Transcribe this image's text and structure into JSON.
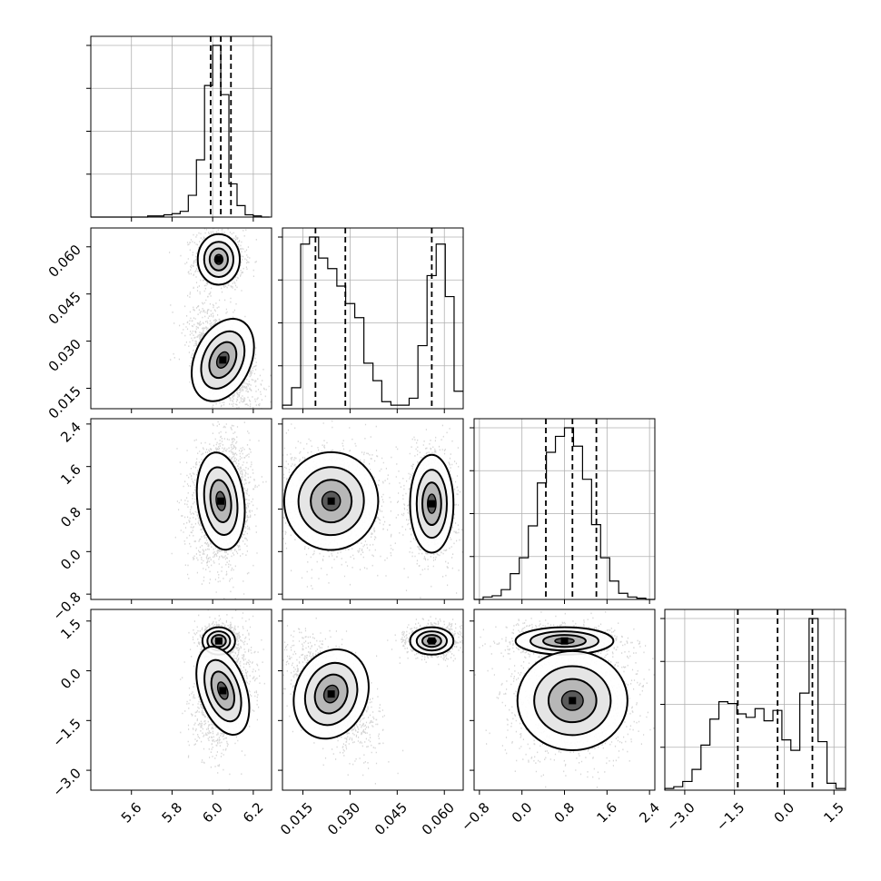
{
  "chart_data": {
    "type": "corner",
    "parameters": [
      {
        "index": 0,
        "range": [
          5.4,
          6.29
        ],
        "ticks": [
          "5.6",
          "5.8",
          "6.0",
          "6.2"
        ],
        "tick_values": [
          5.6,
          5.8,
          6.0,
          6.2
        ],
        "quantiles": [
          5.99,
          6.04,
          6.09
        ],
        "histogram": {
          "bins": [
            5.4,
            5.44,
            5.48,
            5.52,
            5.56,
            5.6,
            5.64,
            5.68,
            5.72,
            5.76,
            5.8,
            5.84,
            5.88,
            5.92,
            5.96,
            6.0,
            6.04,
            6.08,
            6.12,
            6.16,
            6.2,
            6.24,
            6.28
          ],
          "counts": [
            0,
            0,
            0,
            0,
            0,
            0,
            0,
            1,
            1,
            2,
            3,
            5,
            19,
            50,
            115,
            150,
            107,
            29,
            10,
            2,
            1,
            0
          ]
        }
      },
      {
        "index": 1,
        "range": [
          0.0085,
          0.066
        ],
        "ticks": [
          "0.015",
          "0.030",
          "0.045",
          "0.060"
        ],
        "tick_values": [
          0.015,
          0.03,
          0.045,
          0.06
        ],
        "quantiles": [
          0.019,
          0.0285,
          0.056
        ],
        "histogram": {
          "bins": [
            0.0085,
            0.0114,
            0.0143,
            0.0171,
            0.02,
            0.0229,
            0.0258,
            0.0286,
            0.0315,
            0.0344,
            0.0373,
            0.0401,
            0.043,
            0.0459,
            0.0488,
            0.0516,
            0.0545,
            0.0574,
            0.0603,
            0.0631,
            0.066
          ],
          "counts": [
            1,
            6,
            47,
            49,
            43,
            40,
            35,
            30,
            26,
            13,
            8,
            2,
            1,
            1,
            3,
            18,
            38,
            47,
            32,
            5
          ]
        }
      },
      {
        "index": 2,
        "range": [
          -0.9,
          2.5
        ],
        "ticks": [
          "-0.8",
          "0.0",
          "0.8",
          "1.6",
          "2.4"
        ],
        "tick_values": [
          -0.8,
          0.0,
          0.8,
          1.6,
          2.4
        ],
        "quantiles": [
          0.45,
          0.95,
          1.4
        ],
        "histogram": {
          "bins": [
            -0.9,
            -0.73,
            -0.56,
            -0.39,
            -0.22,
            -0.05,
            0.12,
            0.29,
            0.46,
            0.63,
            0.8,
            0.97,
            1.14,
            1.31,
            1.48,
            1.65,
            1.82,
            1.99,
            2.16,
            2.33,
            2.5
          ],
          "counts": [
            0,
            2,
            3,
            8,
            21,
            34,
            60,
            95,
            120,
            133,
            140,
            125,
            98,
            61,
            34,
            15,
            5,
            2,
            1,
            0
          ]
        }
      },
      {
        "index": 3,
        "range": [
          -3.6,
          1.85
        ],
        "ticks": [
          "-3.0",
          "-1.5",
          "0.0",
          "1.5"
        ],
        "tick_values": [
          -3.0,
          -1.5,
          0.0,
          1.5
        ],
        "quantiles": [
          -1.4,
          -0.2,
          0.85
        ],
        "histogram": {
          "bins": [
            -3.6,
            -3.33,
            -3.06,
            -2.78,
            -2.51,
            -2.24,
            -1.97,
            -1.7,
            -1.43,
            -1.15,
            -0.88,
            -0.61,
            -0.34,
            -0.07,
            0.2,
            0.47,
            0.75,
            1.02,
            1.29,
            1.56,
            1.85
          ],
          "counts": [
            1,
            2,
            5,
            12,
            26,
            41,
            51,
            50,
            44,
            42,
            47,
            40,
            46,
            29,
            23,
            56,
            99,
            28,
            4,
            1
          ]
        }
      }
    ],
    "panels_2d": [
      {
        "x": 0,
        "y": 1,
        "modes": [
          {
            "cx": 6.03,
            "cy": 0.056,
            "sx": 0.045,
            "sy": 0.0035,
            "rho": 0.0,
            "weight": 0.4
          },
          {
            "cx": 6.05,
            "cy": 0.024,
            "sx": 0.06,
            "sy": 0.006,
            "rho": -0.55,
            "weight": 0.6
          }
        ]
      },
      {
        "x": 0,
        "y": 2,
        "modes": [
          {
            "cx": 6.04,
            "cy": 0.95,
            "sx": 0.05,
            "sy": 0.4,
            "rho": 0.1,
            "weight": 1.0
          }
        ]
      },
      {
        "x": 1,
        "y": 2,
        "modes": [
          {
            "cx": 0.024,
            "cy": 0.95,
            "sx": 0.0065,
            "sy": 0.4,
            "rho": -0.1,
            "weight": 0.6
          },
          {
            "cx": 0.056,
            "cy": 0.9,
            "sx": 0.003,
            "sy": 0.4,
            "rho": 0.0,
            "weight": 0.4
          }
        ]
      },
      {
        "x": 0,
        "y": 3,
        "modes": [
          {
            "cx": 6.03,
            "cy": 0.9,
            "sx": 0.035,
            "sy": 0.18,
            "rho": 0.0,
            "weight": 0.4
          },
          {
            "cx": 6.05,
            "cy": -0.6,
            "sx": 0.05,
            "sy": 0.6,
            "rho": 0.3,
            "weight": 0.6
          }
        ]
      },
      {
        "x": 1,
        "y": 3,
        "modes": [
          {
            "cx": 0.056,
            "cy": 0.9,
            "sx": 0.003,
            "sy": 0.18,
            "rho": 0.0,
            "weight": 0.4
          },
          {
            "cx": 0.024,
            "cy": -0.7,
            "sx": 0.005,
            "sy": 0.6,
            "rho": -0.55,
            "weight": 0.6
          }
        ]
      },
      {
        "x": 2,
        "y": 3,
        "modes": [
          {
            "cx": 0.8,
            "cy": 0.9,
            "sx": 0.4,
            "sy": 0.18,
            "rho": 0.0,
            "weight": 0.4
          },
          {
            "cx": 0.95,
            "cy": -0.9,
            "sx": 0.45,
            "sy": 0.65,
            "rho": 0.0,
            "weight": 0.6
          }
        ]
      }
    ],
    "grid": true,
    "quantile_line_style": "dashed",
    "colors": {
      "line": "#000000",
      "grid": "#b0b0b0",
      "density": "#000000"
    }
  }
}
